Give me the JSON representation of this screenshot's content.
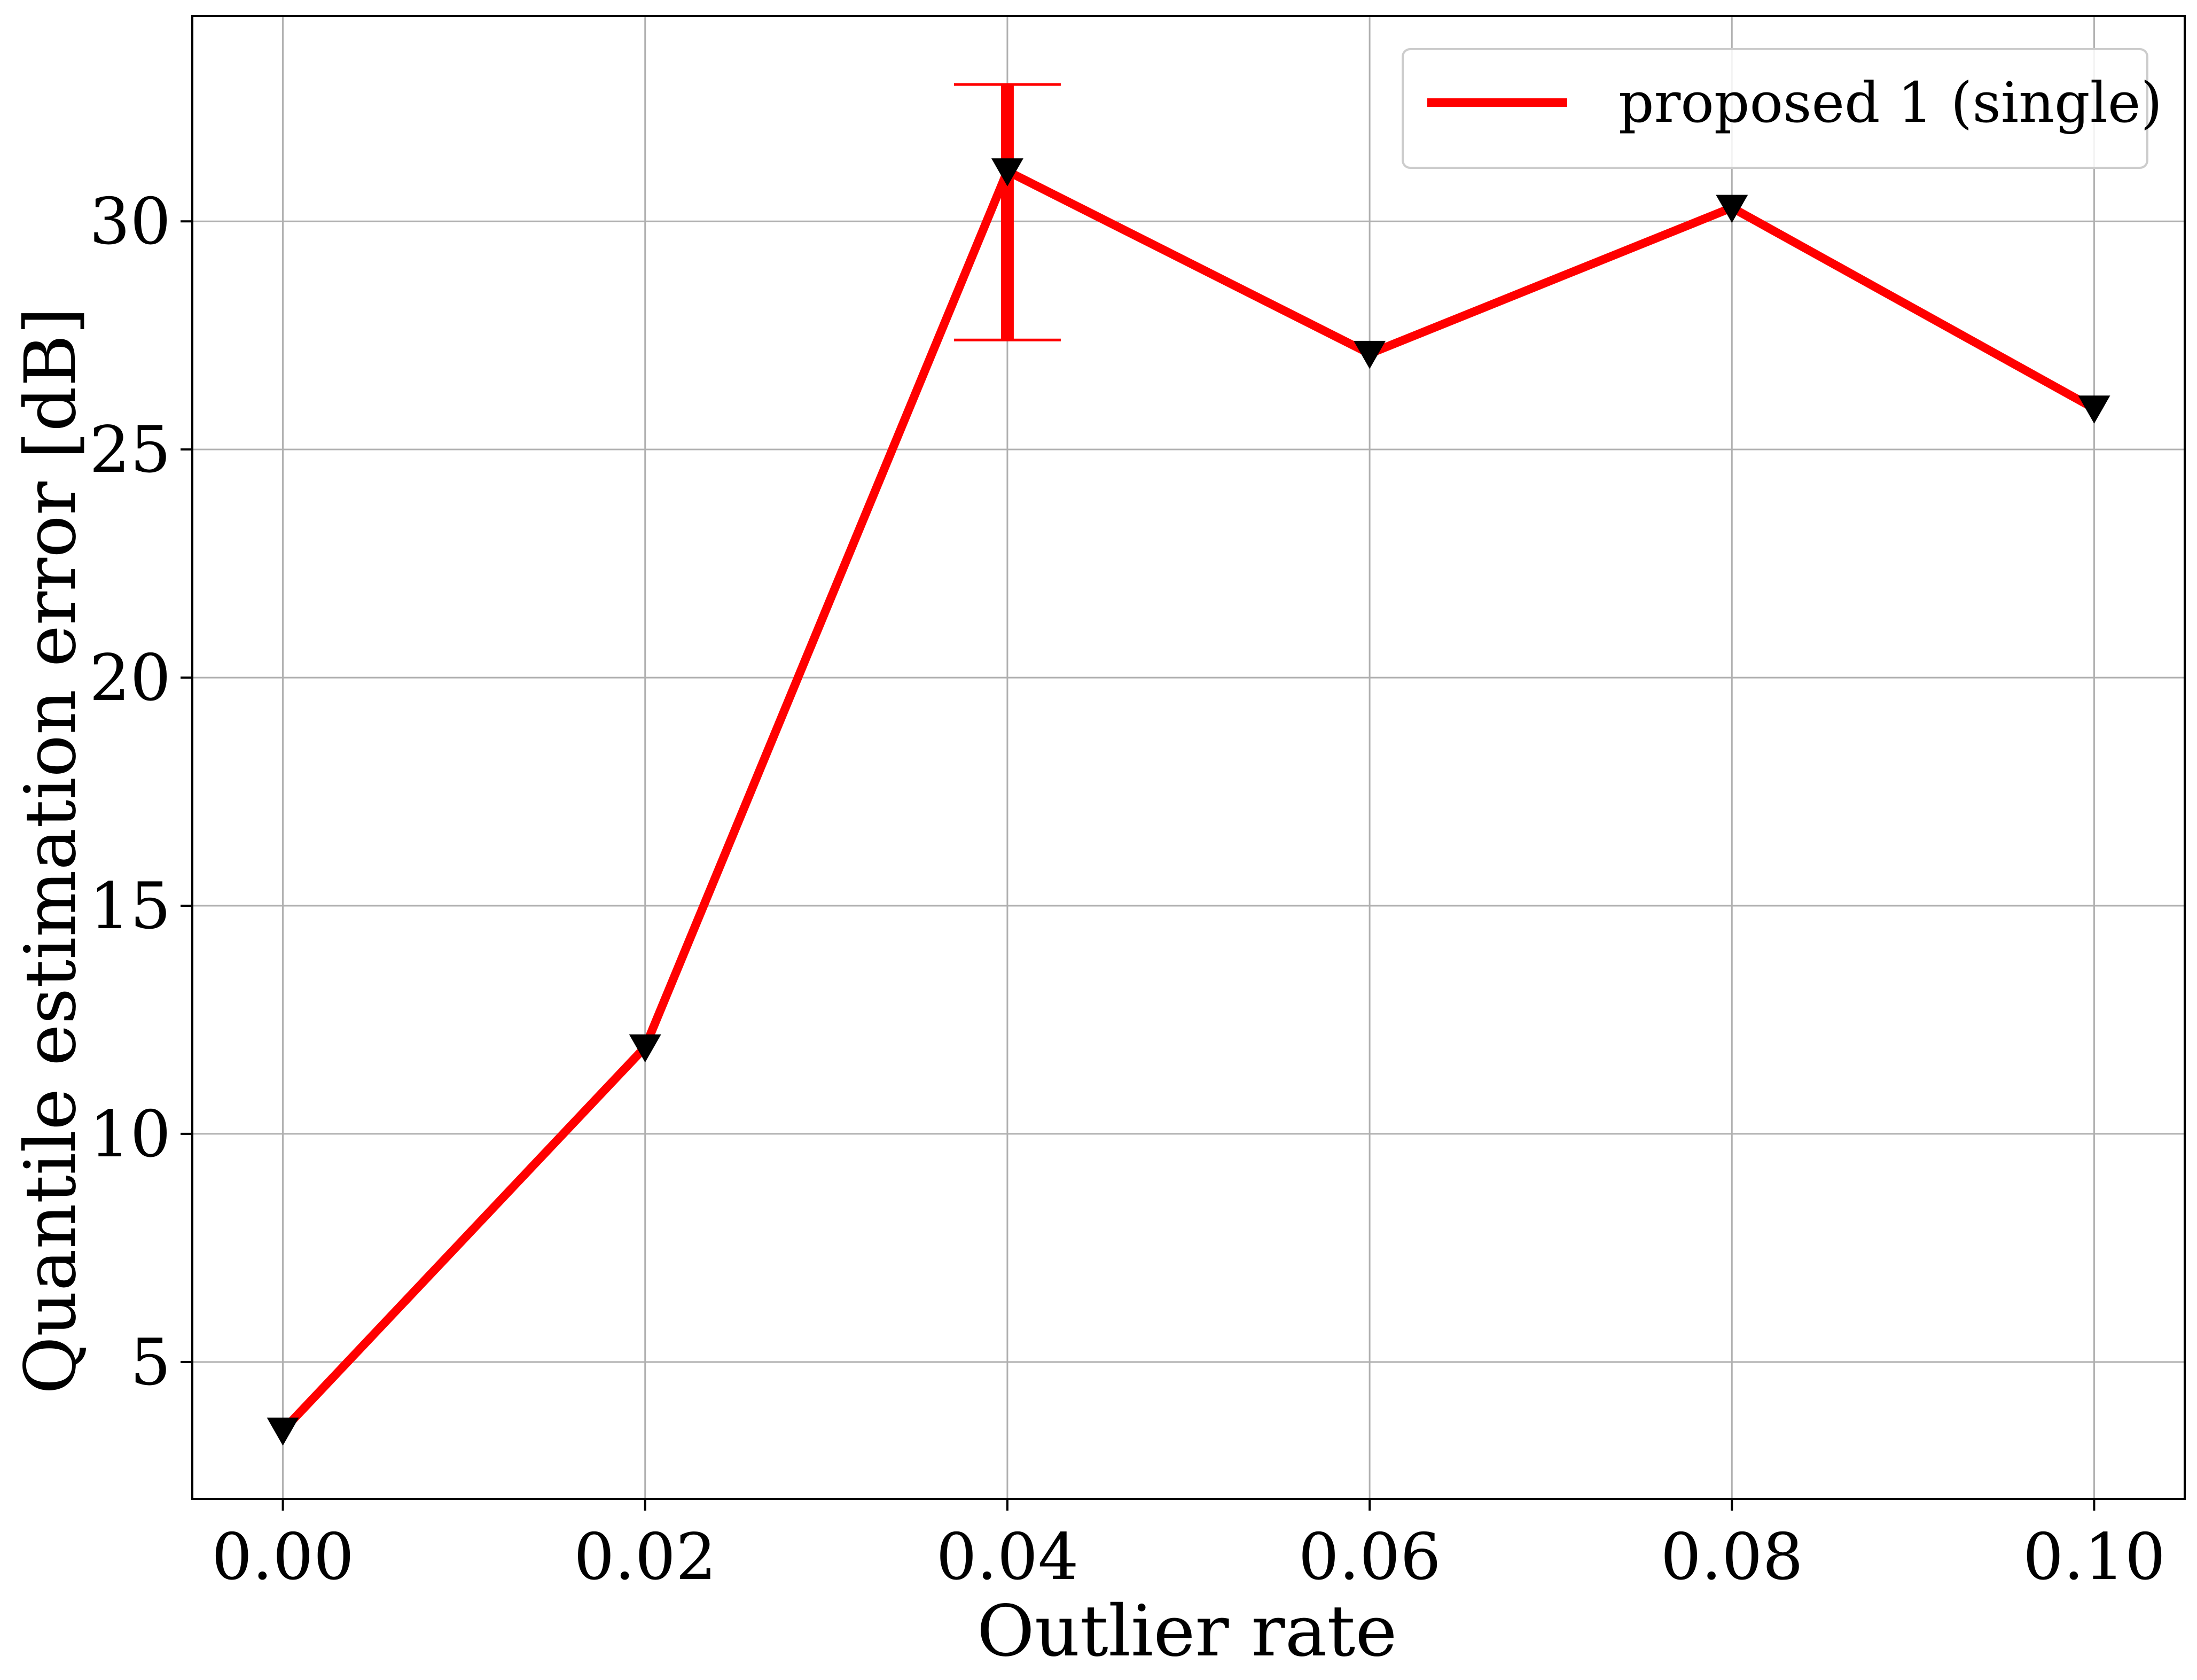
{
  "chart_data": {
    "type": "line",
    "title": "",
    "xlabel": "Outlier rate",
    "ylabel": "Quantile estimation error [dB]",
    "x_ticks": [
      "0.00",
      "0.02",
      "0.04",
      "0.06",
      "0.08",
      "0.10"
    ],
    "x_tick_values": [
      0.0,
      0.02,
      0.04,
      0.06,
      0.08,
      0.1
    ],
    "y_ticks": [
      "5",
      "10",
      "15",
      "20",
      "25",
      "30"
    ],
    "y_tick_values": [
      5,
      10,
      15,
      20,
      25,
      30
    ],
    "xlim": [
      -0.005,
      0.105
    ],
    "ylim": [
      2.0,
      34.5
    ],
    "grid": true,
    "legend_position": "top-right",
    "series": [
      {
        "name": "proposed 1 (single)",
        "color": "#ff0000",
        "marker_color": "#000000",
        "marker": "triangle-down",
        "x": [
          0.0,
          0.02,
          0.04,
          0.06,
          0.08,
          0.1
        ],
        "y": [
          3.5,
          11.9,
          31.1,
          27.1,
          30.3,
          25.9
        ],
        "error_bars": [
          {
            "x": 0.04,
            "low": 27.4,
            "high": 33.0
          }
        ]
      }
    ]
  }
}
